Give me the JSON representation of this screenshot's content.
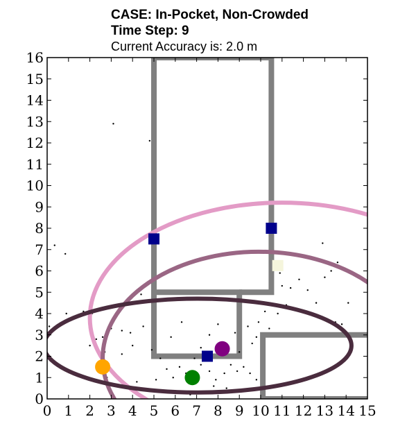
{
  "header": {
    "case_line": "CASE: In-Pocket, Non-Crowded",
    "step_line": "Time Step: 9",
    "accuracy_line": "Current Accuracy is: 2.0 m"
  },
  "chart_data": {
    "type": "scatter",
    "xlim": [
      0,
      15
    ],
    "ylim": [
      0,
      16
    ],
    "x_ticks": [
      "0",
      "1",
      "2",
      "3",
      "4",
      "5",
      "6",
      "7",
      "8",
      "9",
      "10",
      "11",
      "12",
      "13",
      "14",
      "15"
    ],
    "y_ticks": [
      "0",
      "1",
      "2",
      "3",
      "4",
      "5",
      "6",
      "7",
      "8",
      "9",
      "10",
      "11",
      "12",
      "13",
      "14",
      "15",
      "16"
    ],
    "grid": false,
    "walls": {
      "color": "#808080",
      "polylines": [
        [
          [
            5,
            16
          ],
          [
            5,
            2
          ],
          [
            9,
            2
          ],
          [
            9,
            5
          ],
          [
            5,
            5
          ]
        ],
        [
          [
            5,
            16
          ],
          [
            10.5,
            16
          ],
          [
            10.5,
            5
          ],
          [
            9,
            5
          ]
        ],
        [
          [
            10.1,
            0
          ],
          [
            10.1,
            3
          ],
          [
            15,
            3
          ]
        ],
        [
          [
            10.1,
            0
          ],
          [
            15,
            0
          ]
        ]
      ]
    },
    "ellipses": [
      {
        "color": "#e39bc6",
        "cx": 11.0,
        "cy": 3.8,
        "rx": 9.0,
        "ry": 5.4
      },
      {
        "color": "#9a6684",
        "cx": 9.9,
        "cy": 1.9,
        "rx": 7.3,
        "ry": 5.0
      },
      {
        "color": "#4a2c3e",
        "cx": 7.05,
        "cy": 2.5,
        "rx": 7.2,
        "ry": 2.2
      }
    ],
    "markers": [
      {
        "shape": "circle",
        "color": "#ffa500",
        "x": 2.6,
        "y": 1.5
      },
      {
        "shape": "circle",
        "color": "#008000",
        "x": 6.8,
        "y": 1.0
      },
      {
        "shape": "circle",
        "color": "#800080",
        "x": 8.2,
        "y": 2.35
      },
      {
        "shape": "square",
        "color": "#00008b",
        "x": 5.0,
        "y": 7.5
      },
      {
        "shape": "square",
        "color": "#00008b",
        "x": 10.5,
        "y": 8.0
      },
      {
        "shape": "square",
        "color": "#00008b",
        "x": 7.5,
        "y": 2.0
      },
      {
        "shape": "square",
        "color": "#f5f5dc",
        "x": 10.8,
        "y": 6.25
      }
    ],
    "particles": [
      [
        3.1,
        12.9
      ],
      [
        4.8,
        12.1
      ],
      [
        0.35,
        7.2
      ],
      [
        0.85,
        6.8
      ],
      [
        0.1,
        3.4
      ],
      [
        0.4,
        3.3
      ],
      [
        0.9,
        4.0
      ],
      [
        1.7,
        4.1
      ],
      [
        2.1,
        4.0
      ],
      [
        2.3,
        2.8
      ],
      [
        2.6,
        2.9
      ],
      [
        2.0,
        2.5
      ],
      [
        2.7,
        2.2
      ],
      [
        3.0,
        3.3
      ],
      [
        3.5,
        3.2
      ],
      [
        3.9,
        3.1
      ],
      [
        3.5,
        2.1
      ],
      [
        4.0,
        2.5
      ],
      [
        4.5,
        3.4
      ],
      [
        4.9,
        2.3
      ],
      [
        5.3,
        1.9
      ],
      [
        5.6,
        1.4
      ],
      [
        5.9,
        1.0
      ],
      [
        6.2,
        1.5
      ],
      [
        6.5,
        1.2
      ],
      [
        6.9,
        1.9
      ],
      [
        7.2,
        1.6
      ],
      [
        7.6,
        1.3
      ],
      [
        7.9,
        0.9
      ],
      [
        8.3,
        1.2
      ],
      [
        8.6,
        1.6
      ],
      [
        8.9,
        1.3
      ],
      [
        9.2,
        1.5
      ],
      [
        9.5,
        1.2
      ],
      [
        9.8,
        0.9
      ],
      [
        9.6,
        2.6
      ],
      [
        9.8,
        2.9
      ],
      [
        9.4,
        3.4
      ],
      [
        9.9,
        3.6
      ],
      [
        10.2,
        4.1
      ],
      [
        9.9,
        4.5
      ],
      [
        10.4,
        3.3
      ],
      [
        10.8,
        4.0
      ],
      [
        11.2,
        4.4
      ],
      [
        11.4,
        5.2
      ],
      [
        11.8,
        5.6
      ],
      [
        12.2,
        5.1
      ],
      [
        12.6,
        4.5
      ],
      [
        13.0,
        5.7
      ],
      [
        12.9,
        7.3
      ],
      [
        13.3,
        6.0
      ],
      [
        13.6,
        6.4
      ],
      [
        14.1,
        4.5
      ],
      [
        14.4,
        5.8
      ],
      [
        13.5,
        3.6
      ],
      [
        13.8,
        3.5
      ],
      [
        11.0,
        5.3
      ],
      [
        10.6,
        6.3
      ],
      [
        10.9,
        5.9
      ],
      [
        2.8,
        1.0
      ],
      [
        4.2,
        0.8
      ],
      [
        5.1,
        0.9
      ],
      [
        6.0,
        0.3
      ],
      [
        6.7,
        0.2
      ],
      [
        7.8,
        0.6
      ],
      [
        8.4,
        0.5
      ],
      [
        7.2,
        2.4
      ],
      [
        7.6,
        3.0
      ],
      [
        8.0,
        3.5
      ],
      [
        8.8,
        3.1
      ],
      [
        9.0,
        2.2
      ],
      [
        5.8,
        2.9
      ],
      [
        6.3,
        3.6
      ],
      [
        4.4,
        4.9
      ]
    ]
  }
}
